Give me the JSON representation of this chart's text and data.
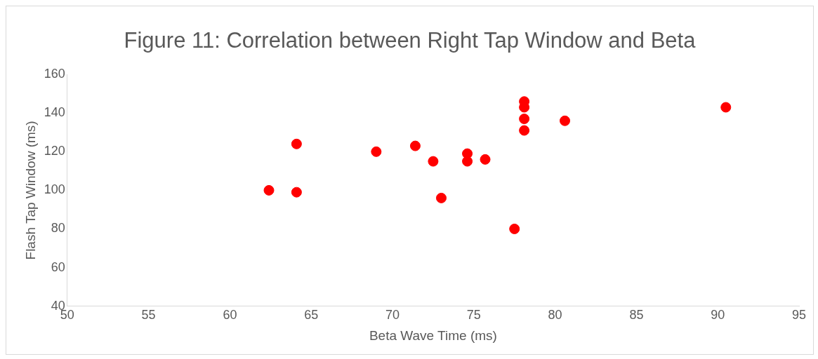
{
  "chart_data": {
    "type": "scatter",
    "title": "Figure 11: Correlation between Right Tap Window and Beta",
    "xlabel": "Beta Wave Time (ms)",
    "ylabel": "Flash Tap Window (ms)",
    "x": [
      62.4,
      64.1,
      64.1,
      69.0,
      71.4,
      72.5,
      73.0,
      74.6,
      74.6,
      75.7,
      77.5,
      78.1,
      78.1,
      78.1,
      78.1,
      80.6,
      90.5
    ],
    "series": [
      {
        "color": "#ff0000",
        "values": [
          100,
          124,
          99,
          120,
          123,
          115,
          96,
          119,
          115,
          116,
          80,
          146,
          143,
          137,
          131,
          136,
          143
        ]
      }
    ],
    "xlim": [
      50,
      95
    ],
    "xticks": [
      50,
      55,
      60,
      65,
      70,
      75,
      80,
      85,
      90,
      95
    ],
    "ylim": [
      40,
      160
    ],
    "yticks": [
      40,
      60,
      80,
      100,
      120,
      140,
      160
    ],
    "grid": false,
    "legend": false,
    "marker": "circle"
  }
}
